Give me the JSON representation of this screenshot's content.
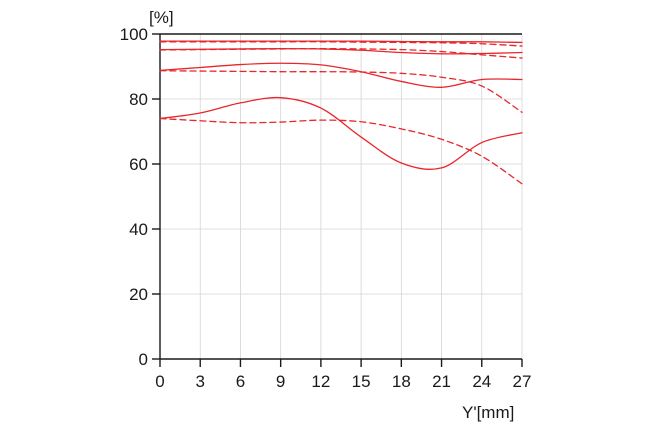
{
  "chart_data": {
    "type": "line",
    "title": "",
    "xlabel": "Y'[mm]",
    "ylabel": "[%]",
    "xlim": [
      0,
      27
    ],
    "ylim": [
      0,
      100
    ],
    "x_ticks": [
      "0",
      "3",
      "6",
      "9",
      "12",
      "15",
      "18",
      "21",
      "24",
      "27"
    ],
    "y_ticks": [
      "0",
      "20",
      "40",
      "60",
      "80",
      "100"
    ],
    "grid": true,
    "legend": "none",
    "line_color": "#e8262b",
    "series": [
      {
        "style": "solid",
        "x": [
          0,
          3,
          6,
          9,
          12,
          15,
          18,
          21,
          24,
          27
        ],
        "y": [
          97.8,
          97.8,
          97.8,
          97.8,
          97.8,
          97.8,
          97.7,
          97.6,
          97.6,
          97.4
        ]
      },
      {
        "style": "dashed",
        "x": [
          0,
          3,
          6,
          9,
          12,
          15,
          18,
          21,
          24,
          27
        ],
        "y": [
          97.6,
          97.6,
          97.6,
          97.6,
          97.6,
          97.5,
          97.4,
          97.3,
          97.0,
          96.3
        ]
      },
      {
        "style": "solid",
        "x": [
          0,
          3,
          6,
          9,
          12,
          15,
          18,
          21,
          24,
          27
        ],
        "y": [
          95.2,
          95.3,
          95.4,
          95.5,
          95.4,
          95.0,
          94.3,
          93.9,
          94.0,
          94.3
        ]
      },
      {
        "style": "dashed",
        "x": [
          0,
          3,
          6,
          9,
          12,
          15,
          18,
          21,
          24,
          27
        ],
        "y": [
          95.1,
          95.2,
          95.3,
          95.4,
          95.5,
          95.4,
          95.2,
          94.6,
          93.6,
          92.6
        ]
      },
      {
        "style": "solid",
        "x": [
          0,
          3,
          6,
          9,
          12,
          15,
          18,
          21,
          24,
          27
        ],
        "y": [
          88.8,
          89.7,
          90.6,
          91.0,
          90.5,
          88.4,
          85.4,
          83.6,
          86.0,
          86.0
        ]
      },
      {
        "style": "dashed",
        "x": [
          0,
          3,
          6,
          9,
          12,
          15,
          18,
          21,
          24,
          27
        ],
        "y": [
          88.7,
          88.6,
          88.5,
          88.4,
          88.4,
          88.3,
          87.9,
          86.7,
          84.0,
          75.9
        ]
      },
      {
        "style": "solid",
        "x": [
          0,
          3,
          6,
          9,
          12,
          15,
          18,
          21,
          24,
          27
        ],
        "y": [
          74.0,
          75.7,
          78.8,
          80.4,
          77.2,
          68.3,
          60.3,
          58.8,
          66.6,
          69.6
        ]
      },
      {
        "style": "dashed",
        "x": [
          0,
          3,
          6,
          9,
          12,
          15,
          18,
          21,
          24,
          27
        ],
        "y": [
          74.0,
          73.3,
          72.7,
          72.9,
          73.5,
          73.0,
          70.8,
          67.6,
          62.4,
          53.9
        ]
      }
    ]
  }
}
